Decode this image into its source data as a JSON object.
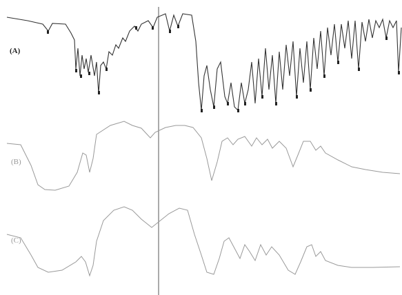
{
  "panels": [
    {
      "label": "(A)"
    },
    {
      "label": "(B)"
    },
    {
      "label": "(C)"
    }
  ]
}
